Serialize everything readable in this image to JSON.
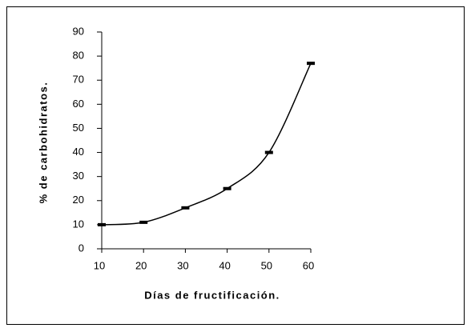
{
  "chart_data": {
    "type": "line",
    "x": [
      10,
      20,
      30,
      40,
      50,
      60
    ],
    "series": [
      {
        "color": "#000000",
        "values": [
          10,
          11,
          17,
          25,
          40,
          77
        ]
      }
    ],
    "xlabel": "Días de fructificación.",
    "ylabel": "% de carbohidratos.",
    "xlim": [
      10,
      60
    ],
    "xticks": [
      10,
      20,
      30,
      40,
      50,
      60
    ],
    "ylim": [
      0,
      90
    ],
    "yticks": [
      0,
      10,
      20,
      30,
      40,
      50,
      60,
      70,
      80,
      90
    ]
  }
}
